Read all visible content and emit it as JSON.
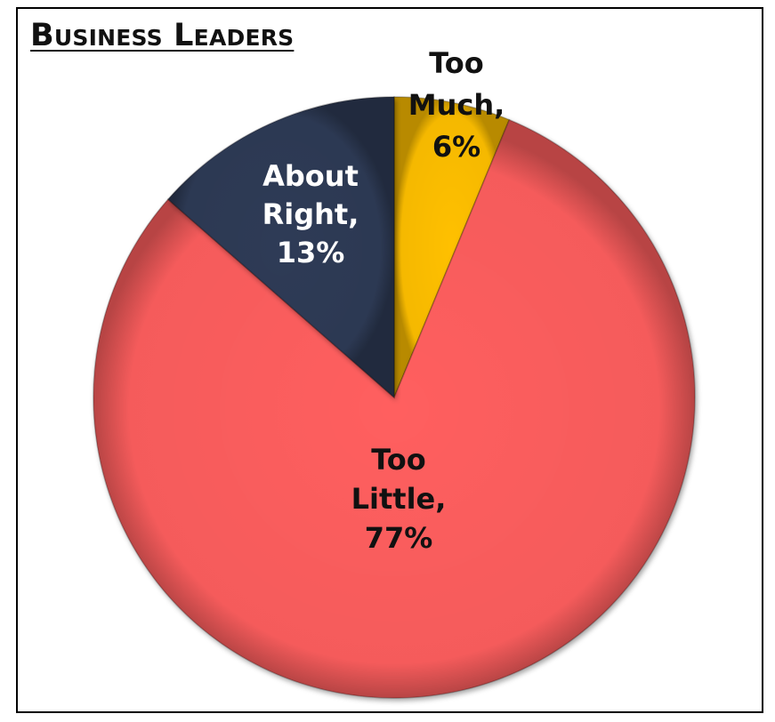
{
  "chart_data": {
    "type": "pie",
    "title": "Business Leaders",
    "slices": [
      {
        "label": "Too Much",
        "value": 6,
        "value_label": "6%",
        "color": "#FFC000",
        "label_color": "#111111"
      },
      {
        "label": "Too Little",
        "value": 77,
        "value_label": "77%",
        "color": "#FF5F5F",
        "label_color": "#111111"
      },
      {
        "label": "About Right",
        "value": 13,
        "value_label": "13%",
        "color": "#2F3A56",
        "label_color": "#FFFFFF"
      }
    ],
    "start_angle": "12 o'clock",
    "direction": "clockwise",
    "legend": "none"
  }
}
